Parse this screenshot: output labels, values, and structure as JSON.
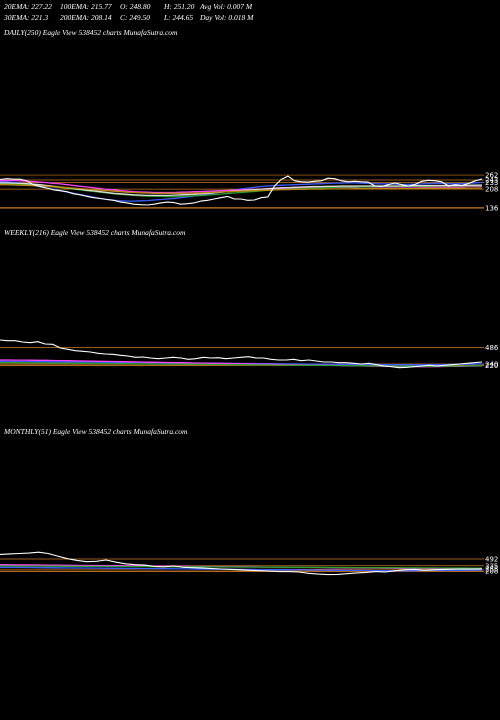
{
  "header": {
    "row1": [
      "20EMA: 227.22",
      "100EMA: 215.77",
      "O: 248.80",
      "H: 251.20",
      "Avg Vol: 0.007 M"
    ],
    "row2": [
      "30EMA: 221.3",
      "200EMA: 208.14",
      "C: 249.50",
      "L: 244.65",
      "Day Vol: 0.018  M"
    ]
  },
  "panels": [
    {
      "title": "DAILY(250) Eagle  View  538452  charts MunafaSutra.com"
    },
    {
      "title": "WEEKLY(216) Eagle  View  538452  charts MunafaSutra.com"
    },
    {
      "title": "MONTHLY(51) Eagle  View  538452  charts MunafaSutra.com"
    }
  ],
  "chart_data": [
    {
      "type": "line",
      "name": "daily",
      "ylim": [
        120,
        320
      ],
      "levels": [
        {
          "value": 262,
          "label": "262",
          "color": "#cc7a22"
        },
        {
          "value": 243,
          "label": "243",
          "color": "#cc7a22"
        },
        {
          "value": 233,
          "label": "233",
          "color": "#cc7a22"
        },
        {
          "value": 208,
          "label": "208",
          "color": "#cc7a22"
        },
        {
          "value": 136,
          "label": "136",
          "color": "#cc7a22"
        }
      ],
      "series": [
        {
          "color": "#ffffff",
          "values": [
            245,
            248,
            246,
            246,
            240,
            225,
            218,
            212,
            205,
            202,
            198,
            190,
            186,
            180,
            175,
            172,
            168,
            165,
            158,
            155,
            150,
            148,
            147,
            150,
            155,
            158,
            156,
            150,
            152,
            155,
            162,
            165,
            170,
            175,
            180,
            170,
            170,
            165,
            166,
            175,
            178,
            220,
            245,
            258,
            240,
            236,
            235,
            238,
            240,
            250,
            248,
            240,
            236,
            238,
            236,
            235,
            220,
            218,
            225,
            232,
            225,
            220,
            226,
            238,
            242,
            240,
            236,
            220,
            225,
            222,
            230,
            240,
            247
          ]
        },
        {
          "color": "#3a5cff",
          "values": [
            236,
            236,
            234,
            231,
            227,
            222,
            217,
            212,
            207,
            202,
            197,
            192,
            187,
            182,
            177,
            172,
            168,
            165,
            163,
            162,
            162,
            163,
            164,
            166,
            168,
            170,
            172,
            175,
            178,
            181,
            185,
            189,
            193,
            197,
            201,
            205,
            209,
            212,
            215,
            218,
            220,
            222,
            223,
            224,
            225,
            226,
            227,
            228,
            229,
            230,
            231,
            231,
            232,
            232,
            231,
            230,
            229,
            228,
            228,
            227,
            226,
            226,
            227,
            228,
            229,
            230,
            230,
            229,
            228,
            229,
            230,
            232,
            234
          ]
        },
        {
          "color": "#ff44ff",
          "values": [
            240,
            241,
            241,
            240,
            239,
            237,
            235,
            233,
            230,
            228,
            225,
            222,
            219,
            216,
            213,
            210,
            207,
            205,
            202,
            200,
            198,
            197,
            196,
            195,
            195,
            195,
            195,
            196,
            197,
            198,
            199,
            200,
            201,
            202,
            203,
            204,
            205,
            206,
            207,
            208,
            209,
            210,
            211,
            212,
            212,
            213,
            213,
            214,
            214,
            214,
            215,
            215,
            215,
            215,
            216,
            216,
            216,
            216,
            216,
            216,
            216,
            216,
            216,
            217,
            217,
            217,
            217,
            217,
            217,
            217,
            218,
            218,
            218
          ]
        },
        {
          "color": "#2e9e2e",
          "values": [
            228,
            228,
            227,
            226,
            225,
            223,
            221,
            219,
            216,
            214,
            211,
            208,
            205,
            202,
            199,
            196,
            193,
            190,
            188,
            186,
            184,
            182,
            181,
            180,
            180,
            179,
            179,
            180,
            181,
            182,
            183,
            185,
            187,
            189,
            191,
            193,
            195,
            197,
            199,
            201,
            203,
            205,
            206,
            208,
            209,
            210,
            211,
            212,
            213,
            214,
            215,
            216,
            216,
            217,
            217,
            217,
            218,
            218,
            218,
            218,
            218,
            218,
            219,
            219,
            219,
            220,
            220,
            220,
            220,
            220,
            221,
            221,
            222
          ]
        },
        {
          "color": "#dddddd",
          "values": [
            232,
            232,
            231,
            230,
            229,
            227,
            225,
            222,
            219,
            216,
            213,
            210,
            207,
            204,
            201,
            198,
            195,
            192,
            190,
            188,
            186,
            185,
            184,
            184,
            184,
            184,
            185,
            186,
            187,
            188,
            190,
            192,
            194,
            196,
            198,
            200,
            202,
            204,
            206,
            208,
            210,
            212,
            213,
            214,
            215,
            216,
            217,
            218,
            218,
            219,
            219,
            220,
            220,
            220,
            220,
            220,
            220,
            220,
            220,
            220,
            220,
            220,
            221,
            221,
            221,
            222,
            222,
            222,
            222,
            222,
            223,
            223,
            224
          ]
        },
        {
          "color": "#b8860b",
          "values": [
            225,
            225,
            224,
            223,
            222,
            221,
            220,
            219,
            217,
            216,
            214,
            212,
            210,
            208,
            206,
            204,
            202,
            200,
            198,
            196,
            195,
            194,
            193,
            192,
            192,
            192,
            192,
            192,
            192,
            193,
            194,
            195,
            196,
            197,
            198,
            199,
            200,
            201,
            202,
            203,
            204,
            205,
            206,
            206,
            207,
            207,
            208,
            208,
            208,
            209,
            209,
            209,
            209,
            210,
            210,
            210,
            210,
            210,
            210,
            210,
            210,
            210,
            210,
            211,
            211,
            211,
            211,
            211,
            211,
            211,
            212,
            212,
            212
          ]
        }
      ]
    },
    {
      "type": "line",
      "name": "weekly",
      "ylim": [
        120,
        900
      ],
      "levels": [
        {
          "value": 486,
          "label": "486",
          "color": "#cc7a22"
        },
        {
          "value": 240,
          "label": "240",
          "color": "#cc7a22"
        },
        {
          "value": 220,
          "label": "220",
          "color": "#cc7a22"
        }
      ],
      "series": [
        {
          "color": "#ffffff",
          "values": [
            600,
            590,
            590,
            570,
            560,
            575,
            540,
            535,
            480,
            460,
            440,
            430,
            420,
            400,
            390,
            385,
            370,
            360,
            340,
            345,
            330,
            320,
            330,
            340,
            330,
            310,
            320,
            340,
            330,
            335,
            320,
            330,
            340,
            350,
            330,
            330,
            310,
            300,
            300,
            310,
            290,
            300,
            285,
            270,
            270,
            260,
            260,
            250,
            240,
            250,
            230,
            210,
            200,
            185,
            190,
            200,
            210,
            220,
            210,
            220,
            230,
            240,
            250,
            260,
            270
          ]
        },
        {
          "color": "#3a5cff",
          "values": [
            280,
            279,
            278,
            277,
            276,
            275,
            274,
            273,
            272,
            271,
            270,
            269,
            268,
            267,
            266,
            265,
            264,
            263,
            262,
            261,
            260,
            259,
            258,
            257,
            256,
            255,
            254,
            253,
            252,
            251,
            250,
            249,
            248,
            247,
            246,
            245,
            244,
            243,
            242,
            241,
            240,
            239,
            238,
            237,
            236,
            235,
            234,
            233,
            232,
            231,
            230,
            230,
            229,
            229,
            228,
            228,
            228,
            229,
            230,
            232,
            234,
            236,
            238,
            240,
            242
          ]
        },
        {
          "color": "#ff44ff",
          "values": [
            300,
            300,
            299,
            298,
            297,
            296,
            295,
            293,
            291,
            289,
            287,
            285,
            283,
            281,
            279,
            277,
            275,
            273,
            271,
            269,
            267,
            265,
            263,
            261,
            259,
            257,
            255,
            253,
            251,
            249,
            247,
            245,
            243,
            241,
            239,
            237,
            235,
            233,
            231,
            229,
            227,
            225,
            223,
            221,
            219,
            217,
            215,
            213,
            211,
            209,
            207,
            205,
            204,
            203,
            202,
            201,
            200,
            200,
            201,
            202,
            204,
            206,
            208,
            210,
            212
          ]
        },
        {
          "color": "#2e9e2e",
          "values": [
            260,
            260,
            259,
            258,
            257,
            256,
            255,
            254,
            253,
            252,
            251,
            250,
            249,
            248,
            247,
            246,
            245,
            244,
            243,
            242,
            241,
            240,
            239,
            238,
            237,
            236,
            235,
            234,
            233,
            232,
            231,
            230,
            229,
            228,
            227,
            226,
            225,
            224,
            223,
            222,
            221,
            220,
            219,
            218,
            217,
            216,
            215,
            214,
            213,
            212,
            211,
            210,
            209,
            208,
            207,
            206,
            206,
            206,
            207,
            208,
            209,
            210,
            212,
            214,
            216
          ]
        }
      ]
    },
    {
      "type": "line",
      "name": "monthly",
      "ylim": [
        120,
        1400
      ],
      "levels": [
        {
          "value": 492,
          "label": "492",
          "color": "#cc7a22"
        },
        {
          "value": 335,
          "label": "335",
          "color": "#cc7a22"
        },
        {
          "value": 255,
          "label": "255",
          "color": "#cc7a22"
        },
        {
          "value": 208,
          "label": "208",
          "color": "#cc7a22"
        }
      ],
      "series": [
        {
          "color": "#ffffff",
          "values": [
            600,
            610,
            620,
            630,
            650,
            620,
            560,
            500,
            460,
            430,
            440,
            470,
            420,
            380,
            360,
            350,
            320,
            310,
            330,
            300,
            290,
            280,
            270,
            260,
            250,
            240,
            230,
            220,
            210,
            200,
            200,
            190,
            160,
            140,
            130,
            135,
            150,
            170,
            180,
            200,
            190,
            220,
            240,
            250,
            230,
            240,
            250,
            255,
            260,
            258,
            262
          ]
        },
        {
          "color": "#3a5cff",
          "values": [
            300,
            298,
            296,
            294,
            292,
            290,
            288,
            286,
            284,
            282,
            280,
            278,
            276,
            274,
            272,
            270,
            268,
            266,
            264,
            262,
            260,
            258,
            256,
            254,
            252,
            250,
            248,
            246,
            244,
            242,
            240,
            238,
            236,
            234,
            232,
            230,
            228,
            226,
            224,
            222,
            220,
            220,
            221,
            222,
            224,
            226,
            228,
            230,
            232,
            234,
            236
          ]
        },
        {
          "color": "#ff44ff",
          "values": [
            360,
            358,
            356,
            354,
            352,
            350,
            348,
            346,
            344,
            342,
            340,
            338,
            336,
            334,
            332,
            330,
            328,
            326,
            324,
            322,
            320,
            318,
            316,
            314,
            312,
            310,
            308,
            306,
            304,
            302,
            300,
            298,
            296,
            294,
            292,
            290,
            288,
            286,
            284,
            282,
            280,
            278,
            276,
            275,
            274,
            273,
            272,
            272,
            272,
            272,
            272
          ]
        },
        {
          "color": "#2e9e2e",
          "values": [
            330,
            329,
            328,
            327,
            326,
            325,
            324,
            323,
            322,
            321,
            320,
            319,
            318,
            317,
            316,
            315,
            314,
            313,
            312,
            311,
            310,
            309,
            308,
            307,
            306,
            305,
            304,
            303,
            302,
            301,
            300,
            299,
            298,
            297,
            296,
            295,
            294,
            293,
            292,
            291,
            290,
            289,
            288,
            287,
            286,
            285,
            284,
            283,
            282,
            281,
            280
          ]
        }
      ]
    }
  ]
}
